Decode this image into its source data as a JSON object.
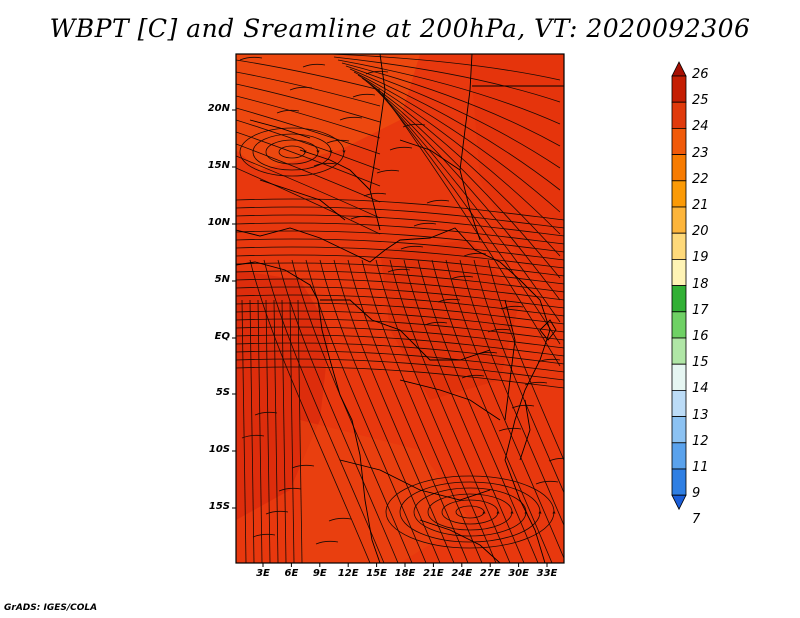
{
  "title": "WBPT [C] and Sreamline at 200hPa, VT: 2020092306",
  "credit": "GrADS: IGES/COLA",
  "colors": {
    "background_fill": "#e8380e",
    "streamline": "#1a0a05",
    "coast": "#000000"
  },
  "axes": {
    "lat_labels": [
      "20N",
      "15N",
      "10N",
      "5N",
      "EQ",
      "5S",
      "10S",
      "15S"
    ],
    "lon_labels": [
      "3E",
      "6E",
      "9E",
      "12E",
      "15E",
      "18E",
      "21E",
      "24E",
      "27E",
      "30E",
      "33E"
    ]
  },
  "colorbar": {
    "labels": [
      "26",
      "25",
      "24",
      "23",
      "22",
      "21",
      "20",
      "19",
      "18",
      "17",
      "16",
      "15",
      "14",
      "13",
      "12",
      "11",
      "9",
      "7"
    ],
    "colors": [
      "#a50f02",
      "#c41e03",
      "#e03a0c",
      "#f05a0a",
      "#f77b00",
      "#fb9a06",
      "#fdb53b",
      "#fed97a",
      "#fef3b5",
      "#31b035",
      "#6fd165",
      "#b0e6a6",
      "#e6f6f2",
      "#bcdcf7",
      "#8cc2f2",
      "#5aa2ec",
      "#2f7fe3",
      "#1a5ed9"
    ]
  }
}
